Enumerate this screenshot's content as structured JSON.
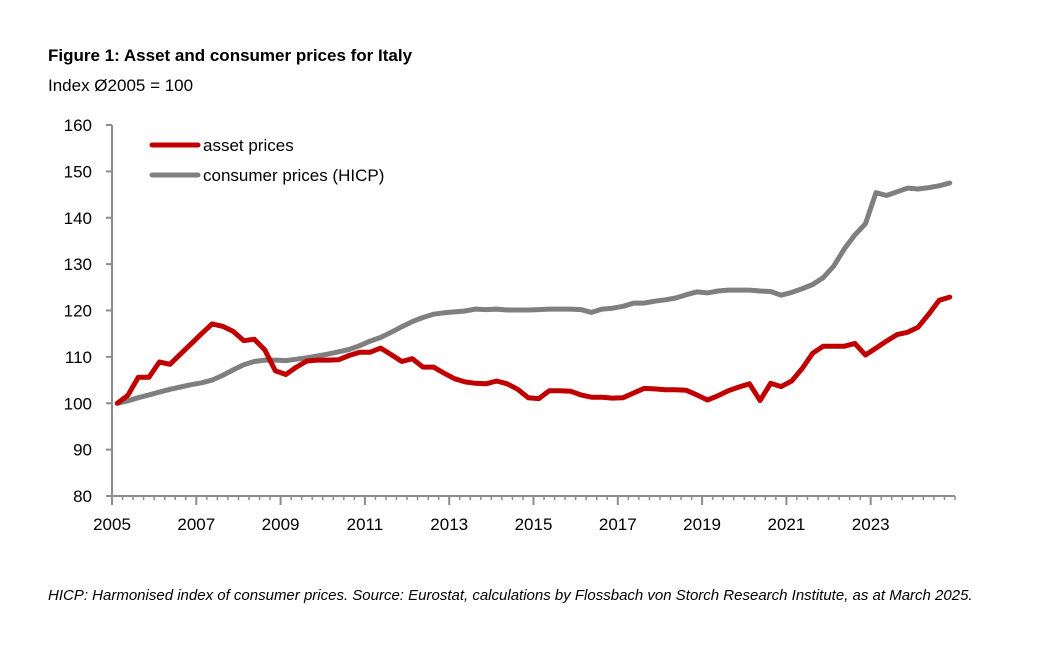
{
  "figure": {
    "title": "Figure 1: Asset and consumer prices for Italy",
    "subtitle": "Index Ø2005 = 100",
    "footnote": "HICP: Harmonised index of consumer prices. Source: Eurostat, calculations by Flossbach von Storch Research Institute, as at March 2025."
  },
  "chart_data": {
    "type": "line",
    "title": "Figure 1: Asset and consumer prices for Italy",
    "subtitle": "Index Ø2005 = 100",
    "xlabel": "",
    "ylabel": "Index Ø2005 = 100",
    "frequency": "quarterly",
    "x_start": "2005Q1",
    "x_end": "2024Q4",
    "xlim": [
      2005,
      2025
    ],
    "ylim": [
      80,
      160
    ],
    "x_ticks": [
      "2005",
      "2007",
      "2009",
      "2011",
      "2013",
      "2015",
      "2017",
      "2019",
      "2021",
      "2023"
    ],
    "y_ticks": [
      "80",
      "90",
      "100",
      "110",
      "120",
      "130",
      "140",
      "150",
      "160"
    ],
    "grid": false,
    "legend_position": "top-left",
    "series": [
      {
        "name": "asset prices",
        "color": "#C00000",
        "values": [
          100,
          101.7,
          105.6,
          105.6,
          108.9,
          108.4,
          110.6,
          112.8,
          115,
          117.1,
          116.6,
          115.5,
          113.5,
          113.8,
          111.5,
          107,
          106.2,
          107.8,
          109.1,
          109.3,
          109.3,
          109.4,
          110.3,
          111,
          111,
          111.9,
          110.5,
          109,
          109.6,
          107.8,
          107.8,
          106.5,
          105.3,
          104.6,
          104.3,
          104.2,
          104.8,
          104.2,
          103,
          101.2,
          101,
          102.7,
          102.7,
          102.6,
          101.8,
          101.3,
          101.3,
          101.1,
          101.2,
          102.2,
          103.2,
          103.1,
          102.9,
          102.9,
          102.8,
          101.8,
          100.7,
          101.6,
          102.7,
          103.5,
          104.2,
          100.6,
          104.3,
          103.6,
          104.8,
          107.5,
          110.8,
          112.3,
          112.3,
          112.3,
          112.9,
          110.4,
          111.9,
          113.4,
          114.8,
          115.3,
          116.4,
          119.2,
          122.2,
          122.9
        ]
      },
      {
        "name": "consumer prices (HICP)",
        "color": "#7F7F7F",
        "values": [
          100,
          100.5,
          101.2,
          101.8,
          102.4,
          103,
          103.5,
          104,
          104.4,
          105,
          106,
          107.2,
          108.3,
          109,
          109.3,
          109.3,
          109.2,
          109.5,
          109.8,
          110.2,
          110.6,
          111.1,
          111.6,
          112.4,
          113.4,
          114.2,
          115.3,
          116.5,
          117.6,
          118.5,
          119.2,
          119.5,
          119.7,
          119.9,
          120.3,
          120.2,
          120.3,
          120.1,
          120.1,
          120.1,
          120.2,
          120.3,
          120.3,
          120.3,
          120.2,
          119.6,
          120.3,
          120.5,
          120.9,
          121.6,
          121.6,
          122,
          122.3,
          122.7,
          123.4,
          124,
          123.8,
          124.2,
          124.4,
          124.4,
          124.4,
          124.2,
          124.1,
          123.3,
          123.9,
          124.7,
          125.6,
          127.1,
          129.6,
          133.3,
          136.3,
          138.7,
          145.4,
          144.8,
          145.6,
          146.4,
          146.2,
          146.5,
          146.9,
          147.5
        ]
      }
    ]
  }
}
